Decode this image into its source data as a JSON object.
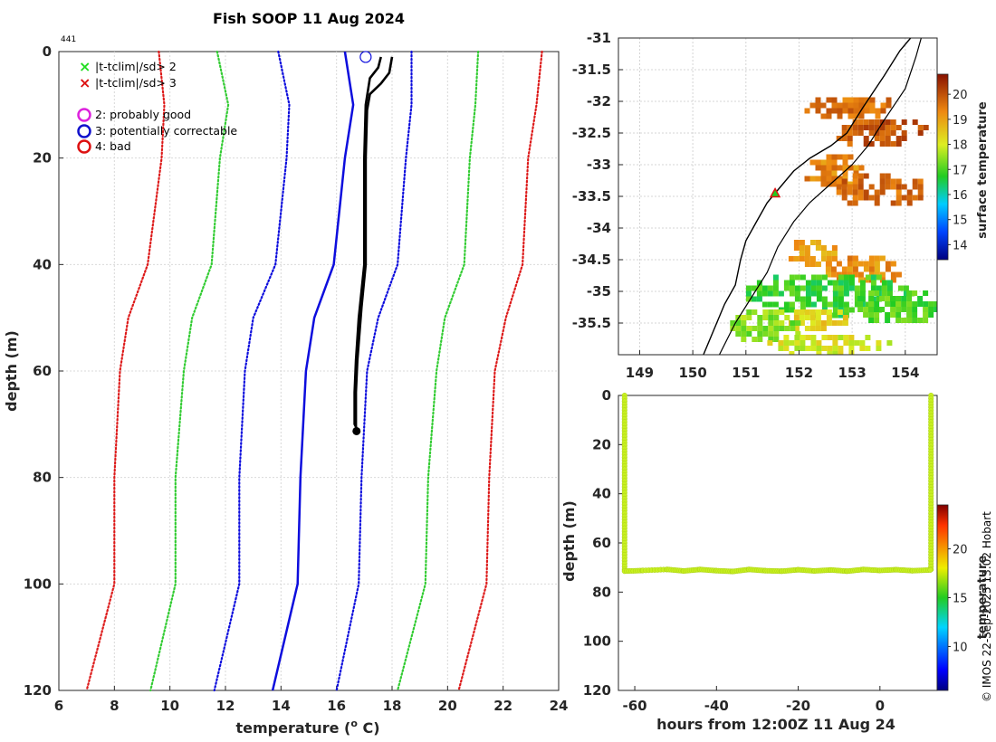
{
  "figure": {
    "title": "Fish SOOP 11 Aug 2024",
    "profile_count": "441",
    "credit": "© IMOS 22-Sep-2025 13:02 Hobart"
  },
  "legend": {
    "flags": [
      {
        "marker": "×",
        "label": "|t-tclim|/sd> 2",
        "color": "#22dd22"
      },
      {
        "marker": "×",
        "label": "|t-tclim|/sd> 3",
        "color": "#dd1111"
      }
    ],
    "qc": [
      {
        "label": "2: probably good",
        "color": "#dd22dd"
      },
      {
        "label": "3: potentially correctable",
        "color": "#1111cc"
      },
      {
        "label": "4: bad",
        "color": "#dd1111"
      }
    ]
  },
  "colors": {
    "observed": "#000000",
    "red": "#dd1a1a",
    "green": "#33cc33",
    "blue": "#0d0ddd",
    "lime": "#c8f020"
  },
  "chart_data": [
    {
      "type": "line",
      "name": "temperature-profile",
      "xlabel": "temperature (",
      "xlabel_sup": "o",
      "xlabel_tail": " C)",
      "ylabel": "depth (m)",
      "xlim": [
        6,
        24
      ],
      "ylim": [
        120,
        0
      ],
      "xticks": [
        6,
        8,
        10,
        12,
        14,
        16,
        18,
        20,
        22,
        24
      ],
      "yticks": [
        0,
        20,
        40,
        60,
        80,
        100,
        120
      ],
      "grid": true,
      "series": [
        {
          "name": "clim -3sd",
          "style": "red-dotted",
          "points": [
            [
              9.6,
              0
            ],
            [
              9.8,
              10
            ],
            [
              9.7,
              20
            ],
            [
              9.2,
              40
            ],
            [
              8.5,
              50
            ],
            [
              8.2,
              60
            ],
            [
              8.0,
              80
            ],
            [
              8.0,
              100
            ],
            [
              7.0,
              120
            ]
          ]
        },
        {
          "name": "clim -2sd",
          "style": "green-dotted",
          "points": [
            [
              11.7,
              0
            ],
            [
              12.1,
              10
            ],
            [
              11.8,
              20
            ],
            [
              11.5,
              40
            ],
            [
              10.8,
              50
            ],
            [
              10.5,
              60
            ],
            [
              10.2,
              80
            ],
            [
              10.2,
              100
            ],
            [
              9.3,
              120
            ]
          ]
        },
        {
          "name": "clim -1sd",
          "style": "blue-dotted",
          "points": [
            [
              13.9,
              0
            ],
            [
              14.3,
              10
            ],
            [
              14.2,
              20
            ],
            [
              13.8,
              40
            ],
            [
              13.0,
              50
            ],
            [
              12.7,
              60
            ],
            [
              12.5,
              80
            ],
            [
              12.5,
              100
            ],
            [
              11.6,
              120
            ]
          ]
        },
        {
          "name": "clim mean",
          "style": "blue-solid",
          "points": [
            [
              16.3,
              0
            ],
            [
              16.6,
              10
            ],
            [
              16.3,
              20
            ],
            [
              15.9,
              40
            ],
            [
              15.2,
              50
            ],
            [
              14.9,
              60
            ],
            [
              14.7,
              80
            ],
            [
              14.6,
              100
            ],
            [
              13.7,
              120
            ]
          ]
        },
        {
          "name": "clim +1sd",
          "style": "blue-dotted",
          "points": [
            [
              18.7,
              0
            ],
            [
              18.7,
              10
            ],
            [
              18.5,
              20
            ],
            [
              18.2,
              40
            ],
            [
              17.5,
              50
            ],
            [
              17.1,
              60
            ],
            [
              16.9,
              80
            ],
            [
              16.8,
              100
            ],
            [
              16.0,
              120
            ]
          ]
        },
        {
          "name": "clim +2sd",
          "style": "green-dotted",
          "points": [
            [
              21.1,
              0
            ],
            [
              21.0,
              10
            ],
            [
              20.8,
              20
            ],
            [
              20.6,
              40
            ],
            [
              19.9,
              50
            ],
            [
              19.6,
              60
            ],
            [
              19.3,
              80
            ],
            [
              19.2,
              100
            ],
            [
              18.2,
              120
            ]
          ]
        },
        {
          "name": "clim +3sd",
          "style": "red-dotted",
          "points": [
            [
              23.4,
              0
            ],
            [
              23.2,
              10
            ],
            [
              22.9,
              20
            ],
            [
              22.7,
              40
            ],
            [
              22.1,
              50
            ],
            [
              21.7,
              60
            ],
            [
              21.5,
              80
            ],
            [
              21.4,
              100
            ],
            [
              20.4,
              120
            ]
          ]
        },
        {
          "name": "observed A",
          "style": "black-thick",
          "points": [
            [
              18.0,
              1
            ],
            [
              17.9,
              4
            ],
            [
              17.6,
              6
            ],
            [
              17.2,
              8
            ],
            [
              17.1,
              11
            ],
            [
              17.05,
              20
            ],
            [
              17.05,
              40
            ],
            [
              16.9,
              48
            ],
            [
              16.75,
              58
            ],
            [
              16.7,
              64
            ],
            [
              16.7,
              70
            ],
            [
              16.7,
              71.5
            ]
          ]
        },
        {
          "name": "observed B",
          "style": "black-thick",
          "points": [
            [
              17.6,
              1
            ],
            [
              17.5,
              3
            ],
            [
              17.2,
              5
            ],
            [
              17.05,
              10
            ],
            [
              17.0,
              20
            ],
            [
              17.0,
              40
            ],
            [
              16.8,
              50
            ],
            [
              16.7,
              58
            ],
            [
              16.65,
              64
            ],
            [
              16.65,
              70
            ],
            [
              16.8,
              71.5
            ]
          ]
        }
      ],
      "surface_flag": {
        "x": 17.05,
        "y": 0.5
      }
    },
    {
      "type": "heatmap",
      "name": "sst-map",
      "colorbar_label": "surface temperature",
      "xlim": [
        148.6,
        154.6
      ],
      "ylim": [
        -36.0,
        -31.0
      ],
      "xticks": [
        149,
        150,
        151,
        152,
        153,
        154
      ],
      "yticks": [
        -31,
        -31.5,
        -32,
        -32.5,
        -33,
        -33.5,
        -34,
        -34.5,
        -35,
        -35.5
      ],
      "cbar_range": [
        13.4,
        20.8
      ],
      "cbar_ticks": [
        14,
        15,
        16,
        17,
        18,
        19,
        20
      ],
      "profile_location": {
        "lon": 151.55,
        "lat": -33.45
      },
      "patches": [
        {
          "lon": 152.9,
          "lat": -32.05,
          "rlon": 0.9,
          "rlat": 0.2,
          "temp": 19.6
        },
        {
          "lon": 153.5,
          "lat": -32.45,
          "rlon": 0.9,
          "rlat": 0.25,
          "temp": 19.9
        },
        {
          "lon": 152.6,
          "lat": -33.05,
          "rlon": 0.6,
          "rlat": 0.3,
          "temp": 19.3
        },
        {
          "lon": 153.5,
          "lat": -33.35,
          "rlon": 0.9,
          "rlat": 0.3,
          "temp": 19.7
        },
        {
          "lon": 152.2,
          "lat": -34.35,
          "rlon": 0.5,
          "rlat": 0.25,
          "temp": 19.0
        },
        {
          "lon": 153.2,
          "lat": -34.6,
          "rlon": 0.8,
          "rlat": 0.25,
          "temp": 19.2
        },
        {
          "lon": 152.5,
          "lat": -35.0,
          "rlon": 1.6,
          "rlat": 0.35,
          "temp": 16.8
        },
        {
          "lon": 153.8,
          "lat": -35.2,
          "rlon": 0.8,
          "rlat": 0.3,
          "temp": 17.0
        },
        {
          "lon": 152.3,
          "lat": -35.4,
          "rlon": 0.6,
          "rlat": 0.2,
          "temp": 18.4
        },
        {
          "lon": 151.3,
          "lat": -35.5,
          "rlon": 0.7,
          "rlat": 0.3,
          "temp": 17.4
        },
        {
          "lon": 152.5,
          "lat": -35.8,
          "rlon": 1.2,
          "rlat": 0.2,
          "temp": 18.0
        }
      ],
      "coastline": [
        [
          154.1,
          -31.0
        ],
        [
          153.9,
          -31.2
        ],
        [
          153.6,
          -31.6
        ],
        [
          153.2,
          -32.1
        ],
        [
          152.9,
          -32.5
        ],
        [
          152.6,
          -32.7
        ],
        [
          152.2,
          -32.9
        ],
        [
          151.9,
          -33.1
        ],
        [
          151.6,
          -33.4
        ],
        [
          151.4,
          -33.6
        ],
        [
          151.2,
          -33.9
        ],
        [
          151.0,
          -34.2
        ],
        [
          150.9,
          -34.5
        ],
        [
          150.8,
          -34.9
        ],
        [
          150.6,
          -35.2
        ],
        [
          150.4,
          -35.6
        ],
        [
          150.2,
          -36.0
        ]
      ],
      "isobath": [
        [
          154.3,
          -31.0
        ],
        [
          154.2,
          -31.3
        ],
        [
          154.0,
          -31.8
        ],
        [
          153.6,
          -32.3
        ],
        [
          153.3,
          -32.7
        ],
        [
          153.0,
          -33.0
        ],
        [
          152.6,
          -33.3
        ],
        [
          152.2,
          -33.6
        ],
        [
          151.9,
          -33.9
        ],
        [
          151.6,
          -34.3
        ],
        [
          151.4,
          -34.7
        ],
        [
          151.1,
          -35.1
        ],
        [
          150.8,
          -35.5
        ],
        [
          150.5,
          -36.0
        ]
      ]
    },
    {
      "type": "scatter",
      "name": "depth-time",
      "xlabel": "hours from 12:00Z 11 Aug 24",
      "ylabel": "depth (m)",
      "xlim": [
        -64,
        14
      ],
      "ylim": [
        120,
        0
      ],
      "xticks": [
        -60,
        -40,
        -20,
        0
      ],
      "yticks": [
        0,
        20,
        40,
        60,
        80,
        100,
        120
      ],
      "colorbar_label": "temperature",
      "cbar_range": [
        5.5,
        24.5
      ],
      "cbar_ticks": [
        10,
        15,
        20
      ],
      "point_temp": 17.5,
      "descent": {
        "x": -62.5,
        "y0": 0,
        "y1": 71
      },
      "ascent": {
        "x": 12.5,
        "y0": 71,
        "y1": 0
      },
      "bottom_track": [
        [
          -62.5,
          71.5
        ],
        [
          -58,
          71.2
        ],
        [
          -52,
          70.8
        ],
        [
          -48,
          71.4
        ],
        [
          -44,
          70.8
        ],
        [
          -40,
          71.3
        ],
        [
          -36,
          71.6
        ],
        [
          -32,
          70.8
        ],
        [
          -28,
          71.3
        ],
        [
          -24,
          71.5
        ],
        [
          -20,
          70.9
        ],
        [
          -16,
          71.4
        ],
        [
          -12,
          71.0
        ],
        [
          -8,
          71.5
        ],
        [
          -4,
          70.8
        ],
        [
          0,
          71.2
        ],
        [
          4,
          70.9
        ],
        [
          8,
          71.3
        ],
        [
          12.5,
          71.0
        ]
      ]
    }
  ]
}
